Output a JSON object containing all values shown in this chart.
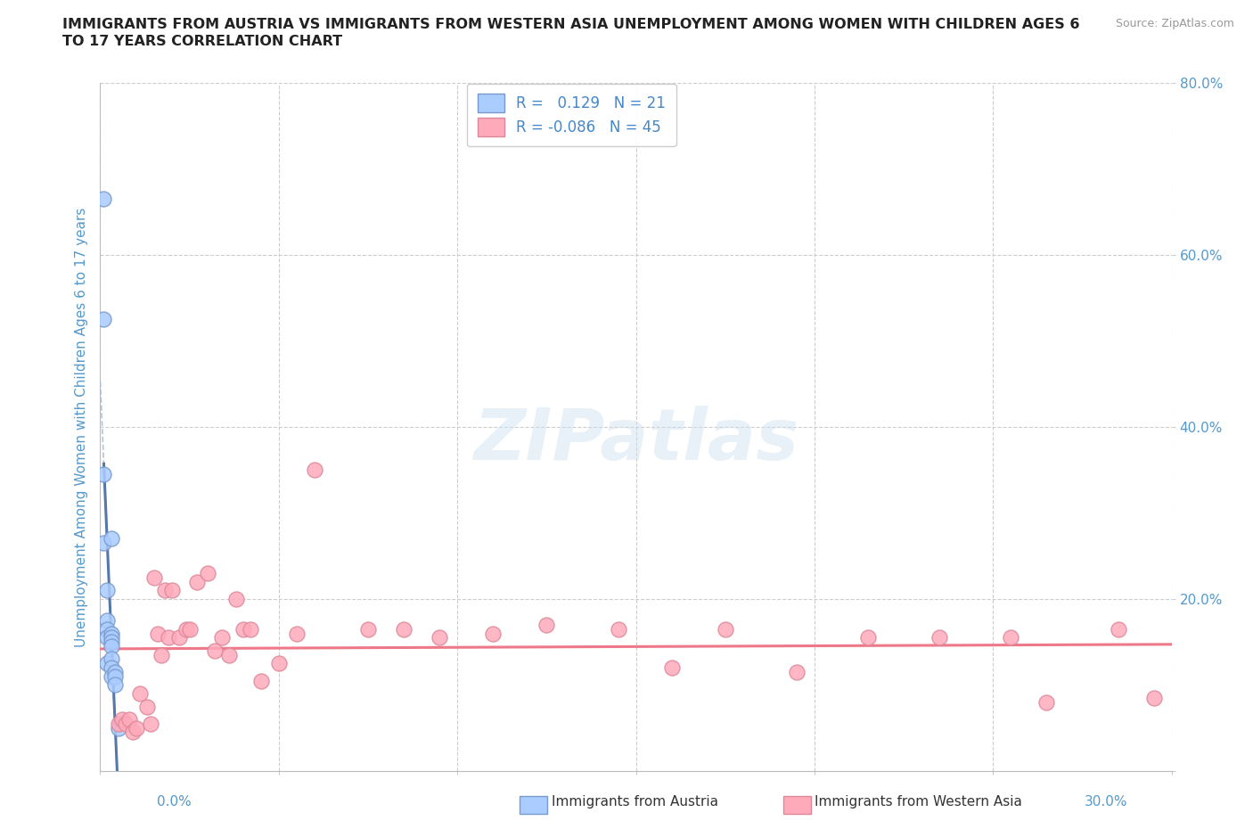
{
  "title_line1": "IMMIGRANTS FROM AUSTRIA VS IMMIGRANTS FROM WESTERN ASIA UNEMPLOYMENT AMONG WOMEN WITH CHILDREN AGES 6",
  "title_line2": "TO 17 YEARS CORRELATION CHART",
  "source_text": "Source: ZipAtlas.com",
  "ylabel": "Unemployment Among Women with Children Ages 6 to 17 years",
  "xlim": [
    0.0,
    0.3
  ],
  "ylim": [
    0.0,
    0.8
  ],
  "xticks": [
    0.0,
    0.05,
    0.1,
    0.15,
    0.2,
    0.25,
    0.3
  ],
  "yticks": [
    0.0,
    0.2,
    0.4,
    0.6,
    0.8
  ],
  "background_color": "#ffffff",
  "grid_color": "#c8c8c8",
  "watermark": "ZIPatlas",
  "austria_color": "#aaccff",
  "austria_edge_color": "#7799cc",
  "western_asia_color": "#ffaabb",
  "western_asia_edge_color": "#dd8899",
  "austria_trend_color": "#5577aa",
  "western_asia_trend_color": "#ee7788",
  "austria_dash_color": "#aabbcc",
  "tick_color": "#5599cc",
  "ylabel_color": "#5599cc",
  "title_color": "#222222",
  "source_color": "#999999",
  "legend_text_color": "#4488cc",
  "bottom_legend_color": "#333333",
  "R_austria": "0.129",
  "N_austria": 21,
  "R_western_asia": "-0.086",
  "N_western_asia": 45,
  "austria_x": [
    0.001,
    0.001,
    0.001,
    0.001,
    0.002,
    0.002,
    0.002,
    0.002,
    0.002,
    0.003,
    0.003,
    0.003,
    0.003,
    0.003,
    0.003,
    0.003,
    0.004,
    0.004,
    0.004,
    0.005,
    0.003
  ],
  "austria_y": [
    0.665,
    0.525,
    0.345,
    0.265,
    0.21,
    0.175,
    0.165,
    0.155,
    0.125,
    0.16,
    0.155,
    0.15,
    0.145,
    0.13,
    0.12,
    0.11,
    0.115,
    0.11,
    0.1,
    0.05,
    0.27
  ],
  "western_asia_x": [
    0.005,
    0.006,
    0.007,
    0.008,
    0.009,
    0.01,
    0.011,
    0.013,
    0.014,
    0.015,
    0.016,
    0.017,
    0.018,
    0.019,
    0.02,
    0.022,
    0.024,
    0.025,
    0.027,
    0.03,
    0.032,
    0.034,
    0.036,
    0.038,
    0.04,
    0.042,
    0.045,
    0.05,
    0.055,
    0.06,
    0.075,
    0.085,
    0.095,
    0.11,
    0.125,
    0.145,
    0.16,
    0.175,
    0.195,
    0.215,
    0.235,
    0.255,
    0.265,
    0.285,
    0.295
  ],
  "western_asia_y": [
    0.055,
    0.06,
    0.055,
    0.06,
    0.045,
    0.05,
    0.09,
    0.075,
    0.055,
    0.225,
    0.16,
    0.135,
    0.21,
    0.155,
    0.21,
    0.155,
    0.165,
    0.165,
    0.22,
    0.23,
    0.14,
    0.155,
    0.135,
    0.2,
    0.165,
    0.165,
    0.105,
    0.125,
    0.16,
    0.35,
    0.165,
    0.165,
    0.155,
    0.16,
    0.17,
    0.165,
    0.12,
    0.165,
    0.115,
    0.155,
    0.155,
    0.155,
    0.08,
    0.165,
    0.085
  ]
}
